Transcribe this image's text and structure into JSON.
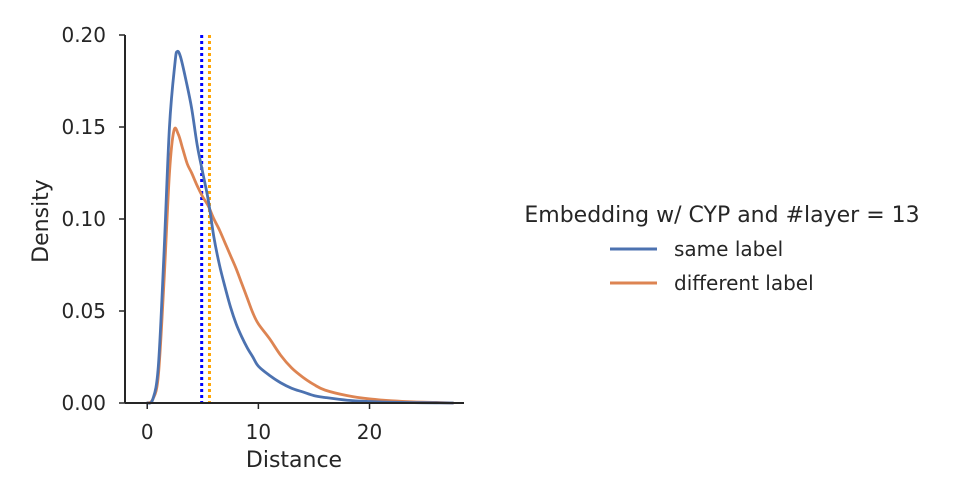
{
  "chart_data": {
    "type": "line",
    "xlabel": "Distance",
    "ylabel": "Density",
    "xlim": [
      -2,
      28.5
    ],
    "ylim": [
      0,
      0.2
    ],
    "xticks": [
      {
        "value": 0,
        "label": "0"
      },
      {
        "value": 10,
        "label": "10"
      },
      {
        "value": 20,
        "label": "20"
      }
    ],
    "yticks": [
      {
        "value": 0,
        "label": "0.00"
      },
      {
        "value": 0.05,
        "label": "0.05"
      },
      {
        "value": 0.1,
        "label": "0.10"
      },
      {
        "value": 0.15,
        "label": "0.15"
      },
      {
        "value": 0.2,
        "label": "0.20"
      }
    ],
    "grid": false,
    "legend": {
      "title": "Embedding w/ CYP and #layer = 13",
      "placement": "right"
    },
    "series": [
      {
        "name": "same label",
        "color": "#4c72b0",
        "x": [
          0,
          0.5,
          1.0,
          1.5,
          2.0,
          2.5,
          2.7,
          3.0,
          3.5,
          4.0,
          4.5,
          5.0,
          5.5,
          6.0,
          6.5,
          7.0,
          7.5,
          8.0,
          8.5,
          9.0,
          9.5,
          10.0,
          11.0,
          12.0,
          13.0,
          14.0,
          15.0,
          16.0,
          18.0,
          20.0,
          22.0,
          24.0,
          26.0,
          27.5
        ],
        "y": [
          0.0,
          0.002,
          0.02,
          0.08,
          0.15,
          0.185,
          0.191,
          0.188,
          0.175,
          0.16,
          0.14,
          0.125,
          0.11,
          0.09,
          0.075,
          0.063,
          0.052,
          0.043,
          0.036,
          0.03,
          0.025,
          0.02,
          0.015,
          0.011,
          0.008,
          0.006,
          0.004,
          0.003,
          0.0015,
          0.0008,
          0.0004,
          0.0002,
          0.0001,
          0.0
        ]
      },
      {
        "name": "different label",
        "color": "#dd8452",
        "x": [
          0,
          0.5,
          1.0,
          1.5,
          2.0,
          2.4,
          2.8,
          3.2,
          3.6,
          4.0,
          4.5,
          5.0,
          5.5,
          6.0,
          6.5,
          7.0,
          7.5,
          8.0,
          8.5,
          9.0,
          9.5,
          10.0,
          11.0,
          12.0,
          13.0,
          14.0,
          15.0,
          16.0,
          18.0,
          20.0,
          22.0,
          24.0,
          26.0,
          27.5
        ],
        "y": [
          0.0,
          0.002,
          0.015,
          0.065,
          0.125,
          0.148,
          0.146,
          0.138,
          0.13,
          0.125,
          0.118,
          0.112,
          0.107,
          0.1,
          0.094,
          0.087,
          0.08,
          0.073,
          0.065,
          0.057,
          0.049,
          0.043,
          0.035,
          0.026,
          0.019,
          0.014,
          0.01,
          0.007,
          0.004,
          0.0022,
          0.0012,
          0.0006,
          0.0003,
          0.0
        ]
      }
    ],
    "reference_lines": [
      {
        "x": 4.9,
        "color": "#0000ff",
        "style": "dotted"
      },
      {
        "x": 5.6,
        "color": "#ffa500",
        "style": "dotted"
      }
    ]
  }
}
